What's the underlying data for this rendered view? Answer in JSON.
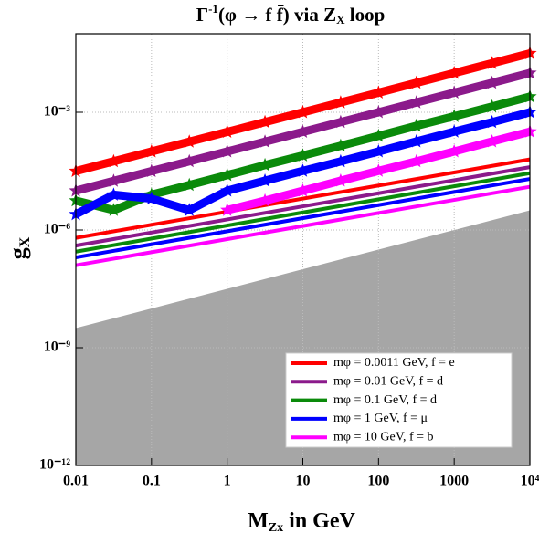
{
  "chart_data": {
    "type": "scatter",
    "title": {
      "pre": "Γ",
      "sup": "-1",
      "mid": "(φ → f f̄) via Z",
      "sub": "X",
      "post": " loop"
    },
    "x_label": {
      "main": "M",
      "sub": "Zx",
      "rest": " in GeV"
    },
    "y_label": {
      "main": "g",
      "sub": "X"
    },
    "log_x": true,
    "log_y": true,
    "grid": true,
    "xlim": [
      0.01,
      10000
    ],
    "ylim": [
      1e-12,
      0.1
    ],
    "xticks": [
      0.01,
      0.1,
      1,
      10,
      100,
      1000,
      {
        "value": 10000,
        "label": "10⁴"
      }
    ],
    "yticks": [
      {
        "value": 1e-12,
        "label": "10⁻¹²"
      },
      {
        "value": 1e-09,
        "label": "10⁻⁹"
      },
      {
        "value": 1e-06,
        "label": "10⁻⁶"
      },
      {
        "value": 0.001,
        "label": "10⁻³"
      }
    ],
    "excluded": {
      "color": "#a6a6a6",
      "x": [
        0.01,
        10000
      ],
      "values": [
        3.16e-09,
        3.16e-06
      ]
    },
    "legend": "lower right",
    "series": [
      {
        "name": "mφ = 0.0011 GeV, f = e",
        "color": "#ff0000",
        "x": [
          0.01,
          10000
        ],
        "values": [
          6.3e-07,
          6.3e-05
        ],
        "star_x": [
          0.01,
          0.0316,
          0.1,
          0.316,
          1,
          3.16,
          10,
          31.6,
          100,
          316,
          1000,
          3162,
          10000
        ],
        "star_values": [
          3.16e-05,
          5.62e-05,
          0.0001,
          0.000178,
          0.000316,
          0.000562,
          0.001,
          0.00178,
          0.00316,
          0.00562,
          0.01,
          0.0178,
          0.0316
        ]
      },
      {
        "name": "mφ = 0.01 GeV, f = d",
        "color": "#8b1a8b",
        "x": [
          0.01,
          10000
        ],
        "values": [
          4e-07,
          4e-05
        ],
        "star_x": [
          0.01,
          0.0316,
          0.1,
          0.316,
          1,
          3.16,
          10,
          31.6,
          100,
          316,
          1000,
          3162,
          10000
        ],
        "star_values": [
          1e-05,
          1.78e-05,
          3.16e-05,
          5.62e-05,
          0.0001,
          0.000178,
          0.000316,
          0.000562,
          0.001,
          0.00178,
          0.00316,
          0.00562,
          0.01
        ]
      },
      {
        "name": "mφ = 0.1 GeV, f = d",
        "color": "#0a8a0a",
        "x": [
          0.01,
          10000
        ],
        "values": [
          2.8e-07,
          2.8e-05
        ],
        "star_x": [
          0.01,
          0.0316,
          0.1,
          0.316,
          1,
          3.16,
          10,
          31.6,
          100,
          316,
          1000,
          3162,
          10000
        ],
        "star_values": [
          5.6e-06,
          3.2e-06,
          7.9e-06,
          1.4e-05,
          2.5e-05,
          4.5e-05,
          7.9e-05,
          0.00014,
          0.00025,
          0.00045,
          0.00079,
          0.0014,
          0.0025
        ]
      },
      {
        "name": "mφ = 1 GeV, f = μ",
        "color": "#0000ff",
        "x": [
          0.01,
          10000
        ],
        "values": [
          2e-07,
          2e-05
        ],
        "star_x": [
          0.01,
          0.0316,
          0.1,
          0.316,
          1,
          3.16,
          10,
          31.6,
          100,
          316,
          1000,
          3162,
          10000
        ],
        "star_values": [
          2.5e-06,
          7.9e-06,
          6.3e-06,
          3.2e-06,
          1e-05,
          1.8e-05,
          3.2e-05,
          5.6e-05,
          0.0001,
          0.00018,
          0.00032,
          0.00056,
          0.001
        ]
      },
      {
        "name": "mφ = 10 GeV, f = b",
        "color": "#ff00ff",
        "x": [
          0.01,
          10000
        ],
        "values": [
          1.26e-07,
          1.26e-05
        ],
        "star_x": [
          1,
          3.16,
          10,
          31.6,
          100,
          316,
          1000,
          3162,
          10000
        ],
        "star_values": [
          3.2e-06,
          5.6e-06,
          1e-05,
          1.8e-05,
          3.2e-05,
          5.6e-05,
          0.0001,
          0.00018,
          0.00032
        ]
      }
    ]
  }
}
